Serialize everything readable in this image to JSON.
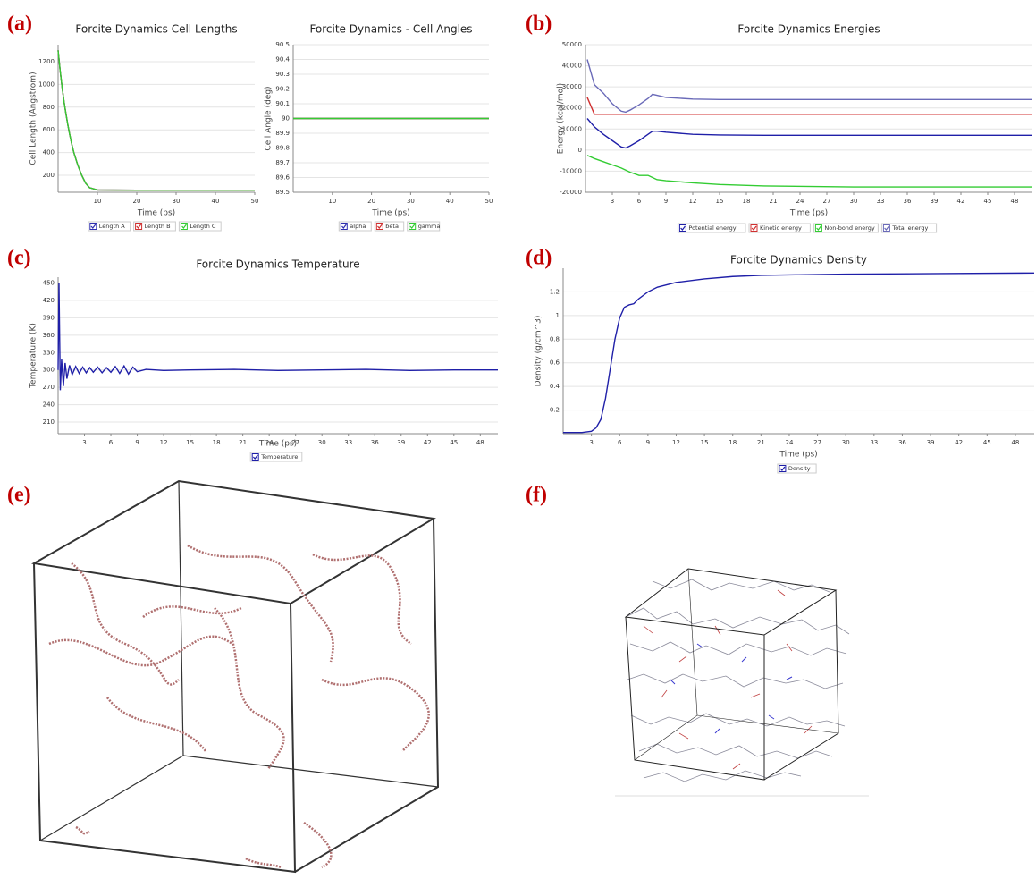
{
  "panel_labels": [
    "(a)",
    "(b)",
    "(c)",
    "(d)",
    "(e)",
    "(f)"
  ],
  "chart_data": [
    {
      "type": "line",
      "title": "Forcite Dynamics Cell Lengths",
      "x_label": "Time (ps)",
      "y_label": "Cell Length (Angstrom)",
      "x": [
        0,
        0.5,
        1,
        1.5,
        2,
        2.5,
        3,
        3.5,
        4,
        5,
        6,
        7,
        8,
        10,
        20,
        30,
        40,
        50
      ],
      "xlim": [
        0,
        50
      ],
      "xticks": [
        10,
        20,
        30,
        40,
        50
      ],
      "ylim": [
        50,
        1350
      ],
      "yticks": [
        200,
        400,
        600,
        800,
        1000,
        1200
      ],
      "grid": true,
      "series": [
        {
          "name": "Length A",
          "color": "#3030b0",
          "values": [
            1300,
            1130,
            980,
            850,
            740,
            640,
            550,
            470,
            400,
            290,
            200,
            130,
            90,
            70,
            68,
            68,
            68,
            68
          ]
        },
        {
          "name": "Length B",
          "color": "#d03030",
          "values": [
            1300,
            1130,
            980,
            850,
            740,
            640,
            550,
            470,
            400,
            290,
            200,
            130,
            90,
            70,
            68,
            68,
            68,
            68
          ]
        },
        {
          "name": "Length C",
          "color": "#33cc33",
          "values": [
            1300,
            1130,
            980,
            850,
            740,
            640,
            550,
            470,
            400,
            290,
            200,
            130,
            90,
            70,
            68,
            68,
            68,
            68
          ]
        }
      ]
    },
    {
      "type": "line",
      "title": "Forcite Dynamics - Cell Angles",
      "x_label": "Time (ps)",
      "y_label": "Cell Angle (deg)",
      "x": [
        0,
        50
      ],
      "xlim": [
        0,
        50
      ],
      "xticks": [
        10,
        20,
        30,
        40,
        50
      ],
      "ylim": [
        89.5,
        90.5
      ],
      "yticks": [
        89.5,
        89.6,
        89.7,
        89.8,
        89.9,
        90,
        90.1,
        90.2,
        90.3,
        90.4,
        90.5
      ],
      "grid": true,
      "series": [
        {
          "name": "alpha",
          "color": "#3030b0",
          "values": [
            90,
            90
          ]
        },
        {
          "name": "beta",
          "color": "#d03030",
          "values": [
            90,
            90
          ]
        },
        {
          "name": "gamma",
          "color": "#33cc33",
          "values": [
            90,
            90
          ]
        }
      ]
    },
    {
      "type": "line",
      "title": "Forcite Dynamics Energies",
      "x_label": "Time (ps)",
      "y_label": "Energy (kcal/mol)",
      "x": [
        0.2,
        1,
        2,
        3,
        4,
        4.5,
        5,
        6,
        7,
        7.5,
        8,
        9,
        12,
        15,
        20,
        30,
        40,
        50
      ],
      "xlim": [
        0,
        50
      ],
      "xticks": [
        3,
        6,
        9,
        12,
        15,
        18,
        21,
        24,
        27,
        30,
        33,
        36,
        39,
        42,
        45,
        48
      ],
      "ylim": [
        -20000,
        50000
      ],
      "yticks": [
        -20000,
        -10000,
        0,
        10000,
        20000,
        30000,
        40000,
        50000
      ],
      "grid": true,
      "series": [
        {
          "name": "Potential energy",
          "color": "#1f1fa8",
          "values": [
            15000,
            11000,
            7500,
            4500,
            1500,
            1000,
            2000,
            4500,
            7500,
            9000,
            9000,
            8500,
            7500,
            7200,
            7000,
            7000,
            7000,
            7000
          ]
        },
        {
          "name": "Kinetic energy",
          "color": "#d03030",
          "values": [
            25000,
            17000,
            17000,
            17000,
            17000,
            17000,
            17000,
            17000,
            17000,
            17000,
            17000,
            17000,
            17000,
            17000,
            17000,
            17000,
            17000,
            17000
          ]
        },
        {
          "name": "Non-bond energy",
          "color": "#33cc33",
          "values": [
            -2500,
            -4000,
            -5500,
            -7000,
            -8500,
            -9500,
            -10500,
            -12000,
            -12000,
            -13000,
            -14000,
            -14500,
            -15500,
            -16300,
            -17000,
            -17500,
            -17500,
            -17500
          ]
        },
        {
          "name": "Total energy",
          "color": "#6a6ab8",
          "values": [
            43000,
            31000,
            27000,
            22000,
            18500,
            18000,
            19000,
            21500,
            24500,
            26500,
            26000,
            25000,
            24200,
            24000,
            24000,
            24000,
            24000,
            24000
          ]
        }
      ]
    },
    {
      "type": "line",
      "title": "Forcite Dynamics Temperature",
      "x_label": "Time (ps)",
      "y_label": "Temperature (K)",
      "x": [
        0,
        0.1,
        0.25,
        0.4,
        0.6,
        0.8,
        1,
        1.3,
        1.6,
        2,
        2.4,
        2.8,
        3.2,
        3.6,
        4,
        4.5,
        5,
        5.5,
        6,
        6.5,
        7,
        7.5,
        8,
        8.5,
        9,
        10,
        12,
        15,
        20,
        25,
        30,
        35,
        40,
        45,
        50
      ],
      "xlim": [
        0,
        50
      ],
      "xticks": [
        3,
        6,
        9,
        12,
        15,
        18,
        21,
        24,
        27,
        30,
        33,
        36,
        39,
        42,
        45,
        48
      ],
      "ylim": [
        190,
        460
      ],
      "yticks": [
        210,
        240,
        270,
        300,
        330,
        360,
        390,
        420,
        450
      ],
      "grid": true,
      "series": [
        {
          "name": "Temperature",
          "color": "#1f1fa8",
          "values": [
            300,
            450,
            265,
            318,
            272,
            312,
            285,
            308,
            292,
            306,
            294,
            305,
            295,
            304,
            296,
            305,
            295,
            304,
            296,
            306,
            294,
            307,
            293,
            305,
            297,
            301,
            299,
            300,
            301,
            299,
            300,
            301,
            299,
            300,
            300
          ]
        }
      ]
    },
    {
      "type": "line",
      "title": "Forcite Dynamics Density",
      "x_label": "Time (ps)",
      "y_label": "Density (g/cm^3)",
      "x": [
        0,
        2,
        3,
        3.5,
        4,
        4.5,
        5,
        5.5,
        6,
        6.5,
        7,
        7.5,
        8,
        9,
        10,
        12,
        15,
        18,
        21,
        25,
        30,
        40,
        50
      ],
      "xlim": [
        0,
        50
      ],
      "xticks": [
        3,
        6,
        9,
        12,
        15,
        18,
        21,
        24,
        27,
        30,
        33,
        36,
        39,
        42,
        45,
        48
      ],
      "ylim": [
        0,
        1.4
      ],
      "yticks": [
        0.2,
        0.4,
        0.6,
        0.8,
        1,
        1.2
      ],
      "grid": true,
      "series": [
        {
          "name": "Density",
          "color": "#1f1fa8",
          "values": [
            0.01,
            0.01,
            0.02,
            0.05,
            0.12,
            0.3,
            0.55,
            0.8,
            0.98,
            1.07,
            1.09,
            1.1,
            1.14,
            1.2,
            1.24,
            1.28,
            1.31,
            1.33,
            1.34,
            1.345,
            1.35,
            1.355,
            1.36
          ]
        }
      ]
    }
  ]
}
